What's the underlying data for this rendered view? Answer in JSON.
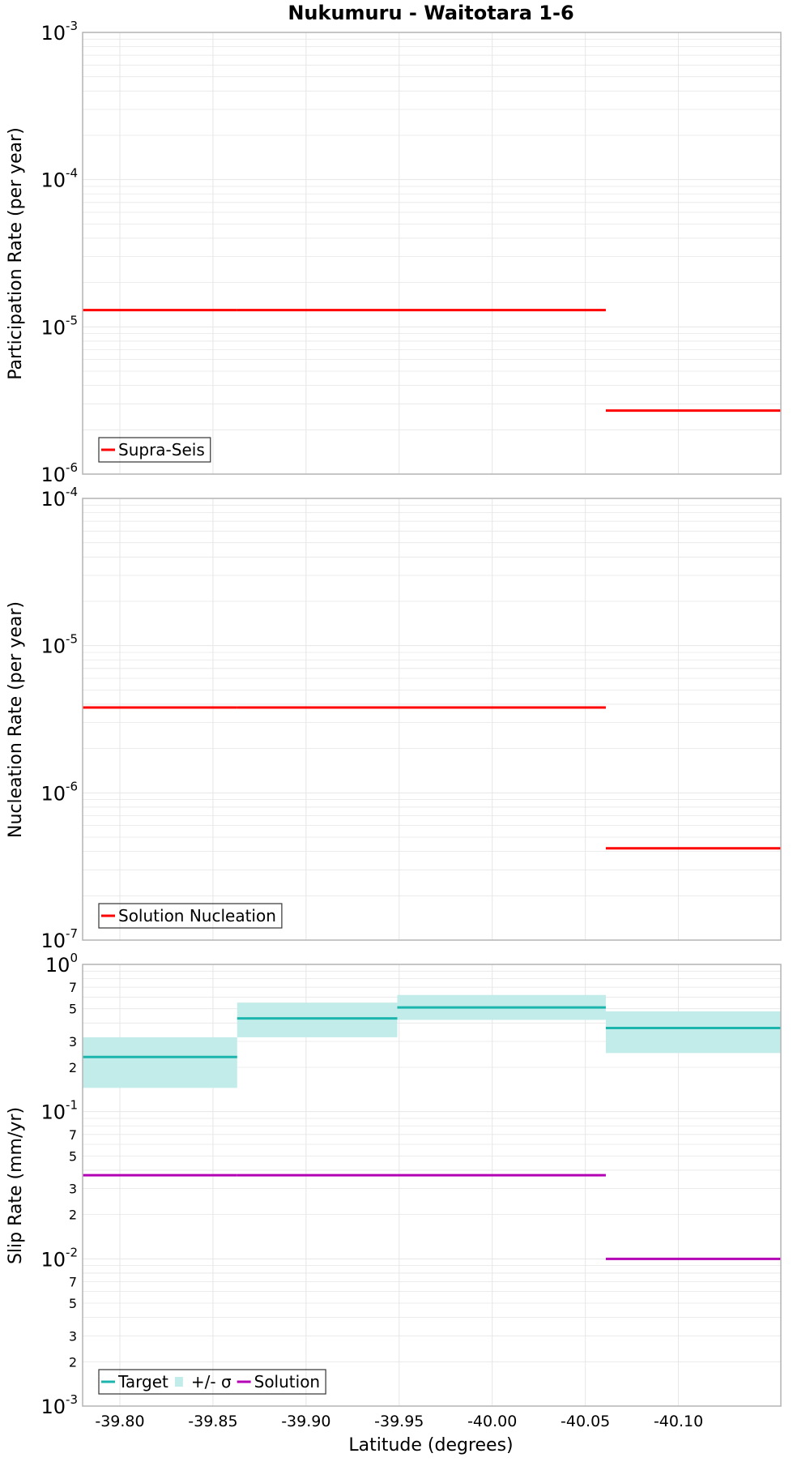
{
  "chart_data": {
    "type": "line",
    "title": "Nukumuru - Waitotara 1-6",
    "xlabel": "Latitude (degrees)",
    "xlim": [
      -39.78,
      -40.155
    ],
    "x_ticks": [
      -39.8,
      -39.85,
      -39.9,
      -39.95,
      -40.0,
      -40.05,
      -40.1
    ],
    "x_tick_labels": [
      "-39.80",
      "-39.85",
      "-39.90",
      "-39.95",
      "-40.00",
      "-40.05",
      "-40.10"
    ],
    "section_bounds": [
      -39.78,
      -39.863,
      -39.949,
      -40.061,
      -40.155
    ],
    "colors": {
      "red": "#ff0000",
      "teal": "#1cb5ae",
      "band": "#c2ece9",
      "magenta": "#b400b4",
      "grid": "#e6e6e6",
      "frame": "#b4b4b4"
    },
    "panels": [
      {
        "id": "participation",
        "ylabel": "Participation Rate (per year)",
        "yscale": "log",
        "ylim": [
          1e-06,
          0.001
        ],
        "y_major": [
          {
            "value": 0.001,
            "base": "10",
            "exp": "-3"
          },
          {
            "value": 0.0001,
            "base": "10",
            "exp": "-4"
          },
          {
            "value": 1e-05,
            "base": "10",
            "exp": "-5"
          },
          {
            "value": 1e-06,
            "base": "10",
            "exp": "-6"
          }
        ],
        "y_minor_labels": [],
        "series": [
          {
            "name": "Supra-Seis",
            "color": "#ff0000",
            "kind": "step",
            "segments": [
              {
                "x": [
                  -39.78,
                  -39.863
                ],
                "y": 1.3e-05
              },
              {
                "x": [
                  -39.863,
                  -39.949
                ],
                "y": 1.3e-05
              },
              {
                "x": [
                  -39.949,
                  -40.061
                ],
                "y": 1.3e-05
              },
              {
                "x": [
                  -40.061,
                  -40.155
                ],
                "y": 2.7e-06
              }
            ]
          }
        ],
        "legend": [
          {
            "label": "Supra-Seis",
            "color": "#ff0000",
            "kind": "line"
          }
        ]
      },
      {
        "id": "nucleation",
        "ylabel": "Nucleation Rate (per year)",
        "yscale": "log",
        "ylim": [
          1e-07,
          0.0001
        ],
        "y_major": [
          {
            "value": 0.0001,
            "base": "10",
            "exp": "-4"
          },
          {
            "value": 1e-05,
            "base": "10",
            "exp": "-5"
          },
          {
            "value": 1e-06,
            "base": "10",
            "exp": "-6"
          },
          {
            "value": 1e-07,
            "base": "10",
            "exp": "-7"
          }
        ],
        "y_minor_labels": [],
        "series": [
          {
            "name": "Solution Nucleation",
            "color": "#ff0000",
            "kind": "step",
            "segments": [
              {
                "x": [
                  -39.78,
                  -39.863
                ],
                "y": 3.8e-06
              },
              {
                "x": [
                  -39.863,
                  -39.949
                ],
                "y": 3.8e-06
              },
              {
                "x": [
                  -39.949,
                  -40.061
                ],
                "y": 3.8e-06
              },
              {
                "x": [
                  -40.061,
                  -40.155
                ],
                "y": 4.2e-07
              }
            ]
          }
        ],
        "legend": [
          {
            "label": "Solution Nucleation",
            "color": "#ff0000",
            "kind": "line"
          }
        ]
      },
      {
        "id": "slip",
        "ylabel": "Slip Rate (mm/yr)",
        "yscale": "log",
        "ylim": [
          0.001,
          1
        ],
        "y_major": [
          {
            "value": 1,
            "base": "10",
            "exp": "0"
          },
          {
            "value": 0.1,
            "base": "10",
            "exp": "-1"
          },
          {
            "value": 0.01,
            "base": "10",
            "exp": "-2"
          },
          {
            "value": 0.001,
            "base": "10",
            "exp": "-3"
          }
        ],
        "y_minor_labels": [
          {
            "value": 0.7,
            "label": "7"
          },
          {
            "value": 0.5,
            "label": "5"
          },
          {
            "value": 0.3,
            "label": "3"
          },
          {
            "value": 0.2,
            "label": "2"
          },
          {
            "value": 0.07,
            "label": "7"
          },
          {
            "value": 0.05,
            "label": "5"
          },
          {
            "value": 0.03,
            "label": "3"
          },
          {
            "value": 0.02,
            "label": "2"
          },
          {
            "value": 0.007,
            "label": "7"
          },
          {
            "value": 0.005,
            "label": "5"
          },
          {
            "value": 0.003,
            "label": "3"
          },
          {
            "value": 0.002,
            "label": "2"
          }
        ],
        "series": [
          {
            "name": "+/- σ",
            "color": "#c2ece9",
            "kind": "band",
            "segments": [
              {
                "x": [
                  -39.78,
                  -39.863
                ],
                "y_low": 0.145,
                "y_high": 0.32
              },
              {
                "x": [
                  -39.863,
                  -39.949
                ],
                "y_low": 0.32,
                "y_high": 0.55
              },
              {
                "x": [
                  -39.949,
                  -40.061
                ],
                "y_low": 0.42,
                "y_high": 0.62
              },
              {
                "x": [
                  -40.061,
                  -40.155
                ],
                "y_low": 0.25,
                "y_high": 0.48
              }
            ]
          },
          {
            "name": "Target",
            "color": "#1cb5ae",
            "kind": "step",
            "segments": [
              {
                "x": [
                  -39.78,
                  -39.863
                ],
                "y": 0.235
              },
              {
                "x": [
                  -39.863,
                  -39.949
                ],
                "y": 0.43
              },
              {
                "x": [
                  -39.949,
                  -40.061
                ],
                "y": 0.51
              },
              {
                "x": [
                  -40.061,
                  -40.155
                ],
                "y": 0.37
              }
            ]
          },
          {
            "name": "Solution",
            "color": "#b400b4",
            "kind": "step",
            "segments": [
              {
                "x": [
                  -39.78,
                  -39.863
                ],
                "y": 0.037
              },
              {
                "x": [
                  -39.863,
                  -39.949
                ],
                "y": 0.037
              },
              {
                "x": [
                  -39.949,
                  -40.061
                ],
                "y": 0.037
              },
              {
                "x": [
                  -40.061,
                  -40.155
                ],
                "y": 0.01
              }
            ]
          }
        ],
        "legend": [
          {
            "label": "Target",
            "color": "#1cb5ae",
            "kind": "line"
          },
          {
            "label": "+/- σ",
            "color": "#c2ece9",
            "kind": "box"
          },
          {
            "label": "Solution",
            "color": "#b400b4",
            "kind": "line"
          }
        ]
      }
    ]
  }
}
